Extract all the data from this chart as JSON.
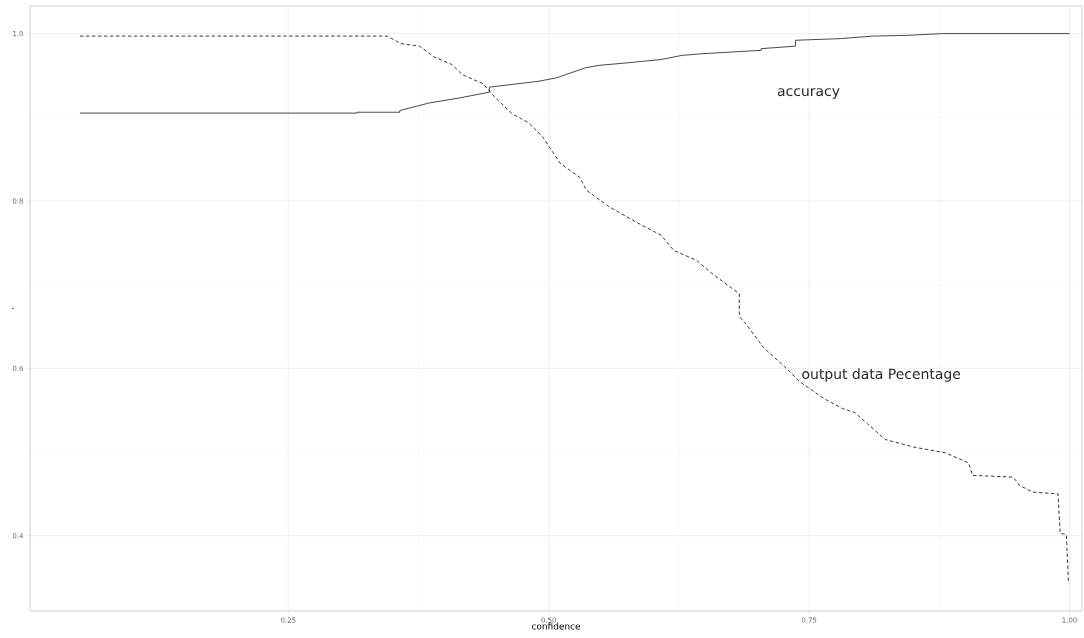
{
  "chart_data": {
    "type": "line",
    "xlabel": "confidence",
    "ylabel": ".",
    "xlim": [
      0.002,
      1.012
    ],
    "ylim": [
      0.31,
      1.033
    ],
    "xticks": [
      0.25,
      {
        "value": 0.5,
        "label": "0.50"
      },
      0.75,
      {
        "value": 1,
        "label": "1.00"
      }
    ],
    "yticks": [
      0.4,
      0.6,
      0.8,
      {
        "value": 1,
        "label": "1.0"
      }
    ],
    "grid": true,
    "series": [
      {
        "name": "accuracy",
        "color": "#333333",
        "line_style": "solid",
        "x": [
          0.05,
          0.316,
          0.316,
          0.357,
          0.357,
          0.385,
          0.414,
          0.443,
          0.443,
          0.49,
          0.507,
          0.535,
          0.548,
          0.575,
          0.608,
          0.628,
          0.648,
          0.704,
          0.704,
          0.737,
          0.737,
          0.78,
          0.811,
          0.846,
          0.878,
          1.0
        ],
        "values": [
          0.905,
          0.905,
          0.906,
          0.906,
          0.908,
          0.917,
          0.923,
          0.93,
          0.936,
          0.943,
          0.947,
          0.959,
          0.962,
          0.965,
          0.969,
          0.974,
          0.976,
          0.98,
          0.982,
          0.985,
          0.992,
          0.994,
          0.997,
          0.998,
          1.0,
          1.0
        ]
      },
      {
        "name": "output data Pecentage",
        "color": "#222222",
        "line_style": "dashed",
        "x": [
          0.05,
          0.345,
          0.358,
          0.376,
          0.39,
          0.407,
          0.417,
          0.437,
          0.449,
          0.465,
          0.48,
          0.494,
          0.511,
          0.53,
          0.536,
          0.558,
          0.585,
          0.608,
          0.62,
          0.642,
          0.655,
          0.683,
          0.683,
          0.69,
          0.706,
          0.729,
          0.741,
          0.764,
          0.782,
          0.794,
          0.823,
          0.85,
          0.881,
          0.903,
          0.907,
          0.946,
          0.952,
          0.965,
          0.989,
          0.991,
          0.997,
          0.999
        ],
        "values": [
          0.997,
          0.997,
          0.988,
          0.985,
          0.972,
          0.963,
          0.951,
          0.94,
          0.923,
          0.904,
          0.894,
          0.877,
          0.845,
          0.828,
          0.813,
          0.793,
          0.774,
          0.759,
          0.741,
          0.729,
          0.715,
          0.689,
          0.662,
          0.652,
          0.625,
          0.599,
          0.584,
          0.564,
          0.552,
          0.547,
          0.515,
          0.506,
          0.499,
          0.487,
          0.472,
          0.47,
          0.46,
          0.452,
          0.45,
          0.403,
          0.401,
          0.343
        ]
      }
    ]
  }
}
